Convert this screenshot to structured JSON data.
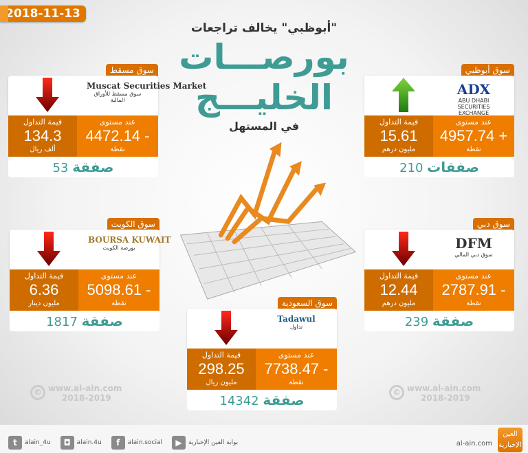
{
  "date": "2018-11-13",
  "header": {
    "subtitle": "\"أبوظبي\" يخالف تراجعات",
    "title_line1": "بورصـــات",
    "title_line2": "الخليـــج",
    "tagline": "في المستهل"
  },
  "labels": {
    "level": "عند مستوى",
    "trade_value": "قيمة التداول",
    "points": "نقطة"
  },
  "colors": {
    "accent": "#ee7d00",
    "accent_dark": "#cf6c00",
    "teal": "#3e9c95",
    "up": "#3fa92a",
    "down": "#c41010"
  },
  "markets": [
    {
      "id": "muscat",
      "name": "سوق مسقط",
      "logo_text": "Muscat Securities Market",
      "logo_sub": "سوق مسقط للأوراق المالية",
      "direction": "down",
      "level": "4472.14 -",
      "trade_value": "134.3",
      "trade_unit": "ألف ريال",
      "deals_count": "53",
      "deals_word": "صفقة"
    },
    {
      "id": "adx",
      "name": "سوق أبوظبي",
      "logo_text": "ADX",
      "logo_sub": "ABU DHABI SECURITIES EXCHANGE",
      "direction": "up",
      "level": "4957.74 +",
      "trade_value": "15.61",
      "trade_unit": "مليون درهم",
      "deals_count": "210",
      "deals_word": "صفقات"
    },
    {
      "id": "kuwait",
      "name": "سوق الكويت",
      "logo_text": "BOURSA KUWAIT",
      "logo_sub": "بورصة الكويت",
      "direction": "down",
      "level": "5098.61 -",
      "trade_value": "6.36",
      "trade_unit": "مليون دينار",
      "deals_count": "1817",
      "deals_word": "صفقة"
    },
    {
      "id": "dfm",
      "name": "سوق دبي",
      "logo_text": "DFM",
      "logo_sub": "سوق دبي المالي",
      "direction": "down",
      "level": "2787.91 -",
      "trade_value": "12.44",
      "trade_unit": "مليون درهم",
      "deals_count": "239",
      "deals_word": "صفقة"
    },
    {
      "id": "saudi",
      "name": "سوق السعودية",
      "logo_text": "Tadawul",
      "logo_sub": "تداول",
      "direction": "down",
      "level": "7738.47 -",
      "trade_value": "298.25",
      "trade_unit": "مليون ريال",
      "deals_count": "14342",
      "deals_word": "صفقة"
    }
  ],
  "watermark": {
    "site": "www.al-ain.com",
    "years": "2018-2019",
    "symbol": "©"
  },
  "footer": {
    "social": [
      {
        "icon": "twitter-icon",
        "glyph": "t",
        "handle": "alain_4u"
      },
      {
        "icon": "instagram-icon",
        "glyph": "◘",
        "handle": "alain.4u"
      },
      {
        "icon": "facebook-icon",
        "glyph": "f",
        "handle": "alain.social"
      },
      {
        "icon": "youtube-icon",
        "glyph": "▶",
        "handle": "بوابة العين الإخبارية"
      }
    ],
    "site": "al-ain.com",
    "brand": "العين الإخبارية"
  }
}
